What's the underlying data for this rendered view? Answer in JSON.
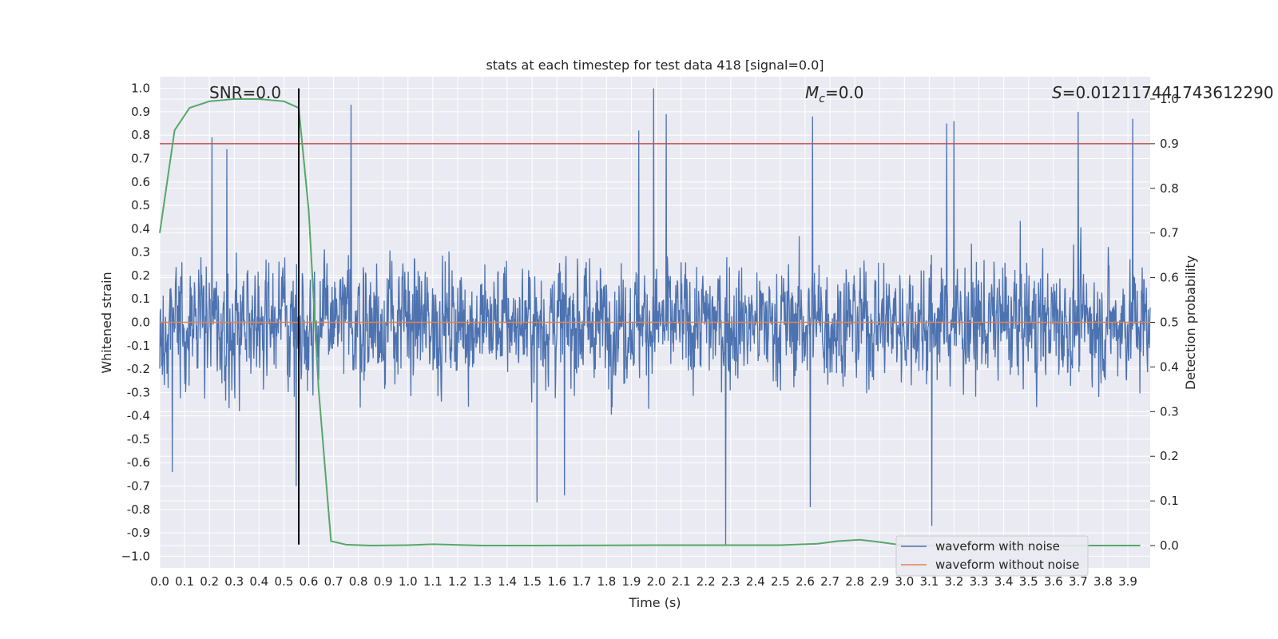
{
  "chart_data": {
    "type": "line",
    "title": "stats at each timestep for test data 418 [signal=0.0]",
    "xlabel": "Time (s)",
    "ylabel": "Whitened strain",
    "y2label": "Detection probability",
    "xlim": [
      0.0,
      3.99
    ],
    "ylim": [
      -1.05,
      1.05
    ],
    "y2lim": [
      -0.05,
      1.05
    ],
    "x_ticks": [
      "0.0",
      "0.1",
      "0.2",
      "0.3",
      "0.4",
      "0.5",
      "0.6",
      "0.7",
      "0.8",
      "0.9",
      "1.0",
      "1.1",
      "1.2",
      "1.3",
      "1.4",
      "1.5",
      "1.6",
      "1.7",
      "1.8",
      "1.9",
      "2.0",
      "2.1",
      "2.2",
      "2.3",
      "2.4",
      "2.5",
      "2.6",
      "2.7",
      "2.8",
      "2.9",
      "3.0",
      "3.1",
      "3.2",
      "3.3",
      "3.4",
      "3.5",
      "3.6",
      "3.7",
      "3.8",
      "3.9"
    ],
    "y_ticks": [
      "1.0",
      "0.9",
      "0.8",
      "0.7",
      "0.6",
      "0.5",
      "0.4",
      "0.3",
      "0.2",
      "0.1",
      "0.0",
      "-0.1",
      "-0.2",
      "-0.3",
      "-0.4",
      "-0.5",
      "-0.6",
      "-0.7",
      "-0.8",
      "-0.9",
      "−1.0"
    ],
    "y2_ticks": [
      "1.0",
      "0.9",
      "0.8",
      "0.7",
      "0.6",
      "0.5",
      "0.4",
      "0.3",
      "0.2",
      "0.1",
      "0.0"
    ],
    "grid": true,
    "legend_position": "lower-right",
    "annotations": {
      "snr": "SNR=0.0",
      "mc_symbol": "M",
      "mc_sub": "c",
      "mc_value": "=0.0",
      "s_symbol": "S",
      "s_value": "=0.012117441743612290"
    },
    "series": [
      {
        "name": "waveform with noise",
        "color": "#4c72b0",
        "axis": "left",
        "kind": "noise-trace",
        "peaks": [
          {
            "x": 1.99,
            "y": 1.0
          },
          {
            "x": 0.77,
            "y": 0.93
          },
          {
            "x": 2.04,
            "y": 0.89
          },
          {
            "x": 3.7,
            "y": 0.9
          },
          {
            "x": 2.63,
            "y": 0.88
          },
          {
            "x": 3.92,
            "y": 0.87
          },
          {
            "x": 3.17,
            "y": 0.85
          },
          {
            "x": 3.2,
            "y": 0.86
          },
          {
            "x": 1.93,
            "y": 0.82
          },
          {
            "x": 0.21,
            "y": 0.79
          },
          {
            "x": 0.27,
            "y": 0.74
          },
          {
            "x": 2.28,
            "y": -0.95
          },
          {
            "x": 3.11,
            "y": -0.87
          },
          {
            "x": 2.62,
            "y": -0.79
          },
          {
            "x": 1.52,
            "y": -0.77
          },
          {
            "x": 1.63,
            "y": -0.74
          },
          {
            "x": 0.55,
            "y": -0.7
          },
          {
            "x": 0.05,
            "y": -0.64
          }
        ]
      },
      {
        "name": "waveform without noise",
        "color": "#dd8452",
        "axis": "left",
        "x": [
          0.0,
          3.99
        ],
        "y": [
          0.0,
          0.0
        ]
      },
      {
        "color": "#55a868",
        "axis": "right",
        "x": [
          0.0,
          0.06,
          0.12,
          0.2,
          0.3,
          0.4,
          0.5,
          0.56,
          0.6,
          0.64,
          0.69,
          0.75,
          0.85,
          1.0,
          1.1,
          1.3,
          1.5,
          2.0,
          2.5,
          2.65,
          2.73,
          2.82,
          2.9,
          3.0,
          3.5,
          3.95
        ],
        "y": [
          0.7,
          0.93,
          0.98,
          0.995,
          1.0,
          1.0,
          0.995,
          0.98,
          0.75,
          0.35,
          0.01,
          0.002,
          0.0,
          0.001,
          0.003,
          0.0,
          0.0,
          0.001,
          0.001,
          0.004,
          0.01,
          0.013,
          0.008,
          0.0,
          0.0,
          0.0
        ]
      },
      {
        "color": "#c44e52",
        "axis": "right",
        "kind": "threshold",
        "y": 0.9
      },
      {
        "color": "#000000",
        "axis": "left",
        "kind": "marker-line",
        "x": 0.56,
        "y": [
          -0.95,
          1.0
        ]
      }
    ]
  }
}
